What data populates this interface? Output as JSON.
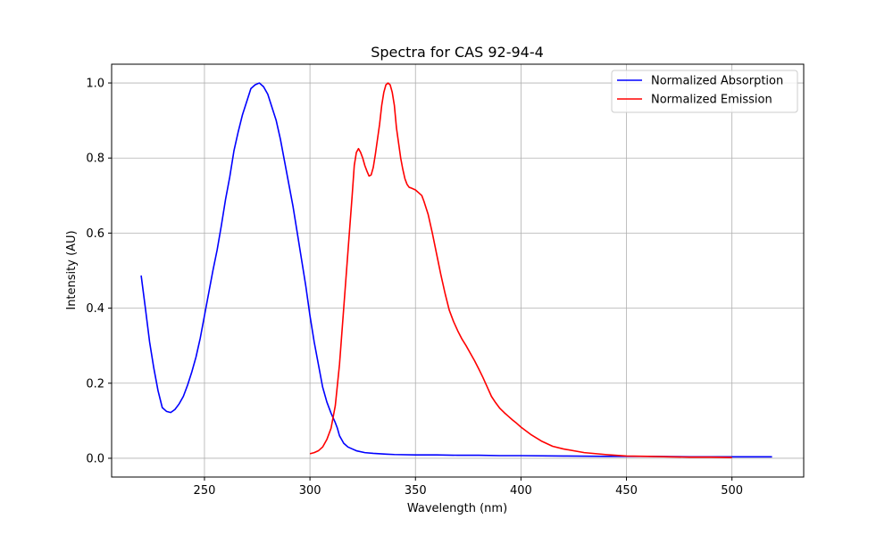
{
  "chart_data": {
    "type": "line",
    "title": "Spectra for CAS 92-94-4",
    "xlabel": "Wavelength (nm)",
    "ylabel": "Intensity (AU)",
    "xlim": [
      206,
      534
    ],
    "ylim": [
      -0.05,
      1.05
    ],
    "xticks": [
      250,
      300,
      350,
      400,
      450,
      500
    ],
    "yticks": [
      0.0,
      0.2,
      0.4,
      0.6,
      0.8,
      1.0
    ],
    "xtick_labels": [
      "250",
      "300",
      "350",
      "400",
      "450",
      "500"
    ],
    "ytick_labels": [
      "0.0",
      "0.2",
      "0.4",
      "0.6",
      "0.8",
      "1.0"
    ],
    "grid": true,
    "legend": "top-right",
    "series": [
      {
        "name": "Normalized Absorption",
        "color": "#0000ff",
        "points": [
          [
            220,
            0.487
          ],
          [
            222,
            0.4
          ],
          [
            224,
            0.31
          ],
          [
            226,
            0.24
          ],
          [
            228,
            0.18
          ],
          [
            230,
            0.135
          ],
          [
            232,
            0.125
          ],
          [
            234,
            0.122
          ],
          [
            236,
            0.13
          ],
          [
            238,
            0.145
          ],
          [
            240,
            0.165
          ],
          [
            242,
            0.195
          ],
          [
            244,
            0.23
          ],
          [
            246,
            0.27
          ],
          [
            248,
            0.32
          ],
          [
            250,
            0.38
          ],
          [
            252,
            0.44
          ],
          [
            254,
            0.5
          ],
          [
            256,
            0.555
          ],
          [
            258,
            0.62
          ],
          [
            260,
            0.69
          ],
          [
            262,
            0.75
          ],
          [
            264,
            0.82
          ],
          [
            266,
            0.87
          ],
          [
            268,
            0.915
          ],
          [
            270,
            0.95
          ],
          [
            272,
            0.985
          ],
          [
            274,
            0.995
          ],
          [
            276,
            1.0
          ],
          [
            278,
            0.99
          ],
          [
            280,
            0.97
          ],
          [
            282,
            0.935
          ],
          [
            284,
            0.9
          ],
          [
            286,
            0.85
          ],
          [
            288,
            0.79
          ],
          [
            290,
            0.73
          ],
          [
            292,
            0.67
          ],
          [
            294,
            0.6
          ],
          [
            296,
            0.53
          ],
          [
            298,
            0.46
          ],
          [
            300,
            0.38
          ],
          [
            302,
            0.31
          ],
          [
            304,
            0.25
          ],
          [
            306,
            0.19
          ],
          [
            308,
            0.15
          ],
          [
            310,
            0.12
          ],
          [
            312,
            0.095
          ],
          [
            313,
            0.08
          ],
          [
            314,
            0.06
          ],
          [
            316,
            0.04
          ],
          [
            318,
            0.03
          ],
          [
            320,
            0.025
          ],
          [
            322,
            0.02
          ],
          [
            326,
            0.015
          ],
          [
            330,
            0.013
          ],
          [
            336,
            0.011
          ],
          [
            340,
            0.01
          ],
          [
            350,
            0.009
          ],
          [
            360,
            0.009
          ],
          [
            370,
            0.008
          ],
          [
            380,
            0.008
          ],
          [
            390,
            0.007
          ],
          [
            400,
            0.007
          ],
          [
            420,
            0.006
          ],
          [
            440,
            0.005
          ],
          [
            460,
            0.005
          ],
          [
            480,
            0.004
          ],
          [
            500,
            0.004
          ],
          [
            519,
            0.004
          ]
        ]
      },
      {
        "name": "Normalized Emission",
        "color": "#ff0000",
        "points": [
          [
            300,
            0.012
          ],
          [
            302,
            0.015
          ],
          [
            304,
            0.02
          ],
          [
            306,
            0.03
          ],
          [
            308,
            0.05
          ],
          [
            310,
            0.08
          ],
          [
            312,
            0.14
          ],
          [
            314,
            0.25
          ],
          [
            316,
            0.4
          ],
          [
            318,
            0.55
          ],
          [
            320,
            0.7
          ],
          [
            321,
            0.78
          ],
          [
            322,
            0.815
          ],
          [
            323,
            0.825
          ],
          [
            324,
            0.815
          ],
          [
            325,
            0.8
          ],
          [
            326,
            0.78
          ],
          [
            327,
            0.765
          ],
          [
            328,
            0.752
          ],
          [
            329,
            0.755
          ],
          [
            330,
            0.775
          ],
          [
            331,
            0.81
          ],
          [
            332,
            0.85
          ],
          [
            333,
            0.89
          ],
          [
            334,
            0.94
          ],
          [
            335,
            0.975
          ],
          [
            336,
            0.995
          ],
          [
            337,
            1.0
          ],
          [
            338,
            0.995
          ],
          [
            339,
            0.975
          ],
          [
            340,
            0.94
          ],
          [
            341,
            0.88
          ],
          [
            342,
            0.84
          ],
          [
            343,
            0.8
          ],
          [
            344,
            0.77
          ],
          [
            345,
            0.745
          ],
          [
            346,
            0.73
          ],
          [
            347,
            0.722
          ],
          [
            348,
            0.72
          ],
          [
            350,
            0.715
          ],
          [
            352,
            0.705
          ],
          [
            353,
            0.7
          ],
          [
            354,
            0.685
          ],
          [
            356,
            0.65
          ],
          [
            358,
            0.6
          ],
          [
            360,
            0.545
          ],
          [
            362,
            0.49
          ],
          [
            364,
            0.44
          ],
          [
            366,
            0.395
          ],
          [
            368,
            0.365
          ],
          [
            370,
            0.34
          ],
          [
            372,
            0.318
          ],
          [
            374,
            0.3
          ],
          [
            376,
            0.28
          ],
          [
            378,
            0.26
          ],
          [
            380,
            0.238
          ],
          [
            382,
            0.215
          ],
          [
            384,
            0.19
          ],
          [
            386,
            0.165
          ],
          [
            388,
            0.148
          ],
          [
            390,
            0.133
          ],
          [
            392,
            0.122
          ],
          [
            394,
            0.112
          ],
          [
            396,
            0.102
          ],
          [
            398,
            0.093
          ],
          [
            400,
            0.083
          ],
          [
            405,
            0.062
          ],
          [
            410,
            0.045
          ],
          [
            415,
            0.032
          ],
          [
            420,
            0.025
          ],
          [
            430,
            0.015
          ],
          [
            440,
            0.01
          ],
          [
            450,
            0.006
          ],
          [
            460,
            0.005
          ],
          [
            470,
            0.004
          ],
          [
            480,
            0.003
          ],
          [
            490,
            0.003
          ],
          [
            500,
            0.002
          ]
        ]
      }
    ]
  }
}
